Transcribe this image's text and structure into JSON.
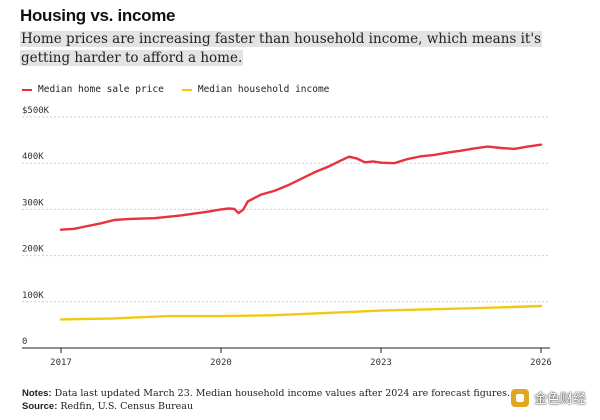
{
  "chart_data": {
    "type": "line",
    "title": "Housing vs. income",
    "subtitle": "Home prices are increasing faster than household income, which means it's getting harder to afford a home.",
    "xlabel": "",
    "ylabel": "",
    "xlim": [
      2017,
      2026
    ],
    "ylim": [
      0,
      500000
    ],
    "x_ticks": [
      {
        "value": 2017,
        "label": "2017"
      },
      {
        "value": 2020,
        "label": "2020"
      },
      {
        "value": 2023,
        "label": "2023"
      },
      {
        "value": 2026,
        "label": "2026"
      }
    ],
    "y_ticks": [
      {
        "value": 0,
        "label": "0"
      },
      {
        "value": 100000,
        "label": "100K"
      },
      {
        "value": 200000,
        "label": "200K"
      },
      {
        "value": 300000,
        "label": "300K"
      },
      {
        "value": 400000,
        "label": "400K"
      },
      {
        "value": 500000,
        "label": "$500K"
      }
    ],
    "grid": true,
    "legend_position": "top-left",
    "series": [
      {
        "name": "Median home sale price",
        "color": "#e8323c",
        "points": [
          [
            2017.0,
            256000
          ],
          [
            2017.25,
            258000
          ],
          [
            2017.5,
            264000
          ],
          [
            2017.75,
            270000
          ],
          [
            2018.0,
            277000
          ],
          [
            2018.25,
            279000
          ],
          [
            2018.5,
            280000
          ],
          [
            2018.75,
            281000
          ],
          [
            2019.0,
            284000
          ],
          [
            2019.25,
            287000
          ],
          [
            2019.5,
            291000
          ],
          [
            2019.75,
            295000
          ],
          [
            2020.0,
            300000
          ],
          [
            2020.15,
            302000
          ],
          [
            2020.25,
            301000
          ],
          [
            2020.33,
            292000
          ],
          [
            2020.42,
            300000
          ],
          [
            2020.5,
            317000
          ],
          [
            2020.75,
            332000
          ],
          [
            2021.0,
            340000
          ],
          [
            2021.25,
            352000
          ],
          [
            2021.5,
            366000
          ],
          [
            2021.75,
            380000
          ],
          [
            2022.0,
            392000
          ],
          [
            2022.25,
            406000
          ],
          [
            2022.4,
            414000
          ],
          [
            2022.55,
            410000
          ],
          [
            2022.7,
            402000
          ],
          [
            2022.85,
            404000
          ],
          [
            2023.0,
            401000
          ],
          [
            2023.25,
            400000
          ],
          [
            2023.5,
            409000
          ],
          [
            2023.75,
            415000
          ],
          [
            2024.0,
            418000
          ],
          [
            2024.25,
            423000
          ],
          [
            2024.5,
            427000
          ],
          [
            2024.75,
            432000
          ],
          [
            2025.0,
            436000
          ],
          [
            2025.25,
            433000
          ],
          [
            2025.5,
            431000
          ],
          [
            2025.75,
            436000
          ],
          [
            2026.0,
            440000
          ]
        ]
      },
      {
        "name": "Median household income",
        "color": "#f2c811",
        "points": [
          [
            2017.0,
            62000
          ],
          [
            2018.0,
            64000
          ],
          [
            2019.0,
            69000
          ],
          [
            2020.0,
            69000
          ],
          [
            2021.0,
            71000
          ],
          [
            2022.0,
            76000
          ],
          [
            2023.0,
            81000
          ],
          [
            2024.0,
            84000
          ],
          [
            2025.0,
            87000
          ],
          [
            2026.0,
            91000
          ]
        ]
      }
    ]
  },
  "notes": {
    "notes_label": "Notes:",
    "notes_text": "Data last updated March 23. Median household income values after 2024 are forecast figures.",
    "source_label": "Source:",
    "source_text": "Redfin, U.S. Census Bureau"
  },
  "watermark": {
    "text": "金色财经"
  }
}
